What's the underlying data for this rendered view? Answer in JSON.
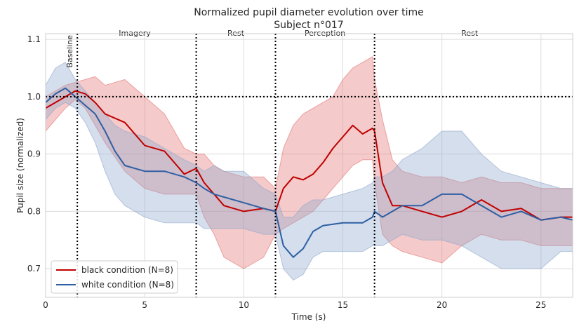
{
  "chart_data": {
    "type": "line",
    "title": "Normalized pupil diameter evolution over time",
    "subtitle": "Subject n°017",
    "xlabel": "Time (s)",
    "ylabel": "Pupil size (normalized)",
    "xlim": [
      0,
      26.6
    ],
    "ylim": [
      0.65,
      1.11
    ],
    "xticks": [
      0,
      5,
      10,
      15,
      20,
      25
    ],
    "xtick_labels": [
      "0",
      "5",
      "10",
      "15",
      "20",
      "25"
    ],
    "yticks": [
      0.7,
      0.8,
      0.9,
      1.0,
      1.1
    ],
    "ytick_labels": [
      "0.7",
      "0.8",
      "0.9",
      "1.0",
      "1.1"
    ],
    "grid": true,
    "legend_position": "bottom-left",
    "baseline_y": 1.0,
    "phase_boundaries": [
      1.6,
      7.6,
      11.6,
      16.6
    ],
    "phases": [
      {
        "label": "Baseline",
        "x": 1.2,
        "vertical": true
      },
      {
        "label": "Imagery",
        "x": 4.5,
        "vertical": false
      },
      {
        "label": "Rest",
        "x": 9.6,
        "vertical": false
      },
      {
        "label": "Perception",
        "x": 14.1,
        "vertical": false
      },
      {
        "label": "Rest",
        "x": 21.4,
        "vertical": false
      }
    ],
    "series": [
      {
        "name": "black condition (N=8)",
        "color": "#c00000",
        "fill": "#e57373",
        "x": [
          0,
          0.5,
          1.0,
          1.5,
          2.0,
          2.5,
          3.0,
          4.0,
          5.0,
          6.0,
          7.0,
          7.6,
          8.0,
          8.5,
          9.0,
          10.0,
          11.0,
          11.6,
          12.0,
          12.5,
          13.0,
          13.5,
          14.0,
          14.5,
          15.0,
          15.5,
          16.0,
          16.5,
          16.6,
          17.0,
          17.5,
          18.0,
          19.0,
          20.0,
          21.0,
          22.0,
          23.0,
          24.0,
          25.0,
          26.0,
          26.6
        ],
        "values": [
          0.98,
          0.99,
          1.0,
          1.01,
          1.005,
          0.99,
          0.97,
          0.955,
          0.915,
          0.905,
          0.865,
          0.875,
          0.85,
          0.83,
          0.81,
          0.8,
          0.805,
          0.8,
          0.84,
          0.86,
          0.855,
          0.865,
          0.885,
          0.91,
          0.93,
          0.95,
          0.935,
          0.945,
          0.94,
          0.85,
          0.81,
          0.81,
          0.8,
          0.79,
          0.8,
          0.82,
          0.8,
          0.805,
          0.785,
          0.79,
          0.79
        ],
        "lower": [
          0.94,
          0.96,
          0.98,
          0.995,
          0.98,
          0.95,
          0.92,
          0.87,
          0.84,
          0.83,
          0.83,
          0.83,
          0.79,
          0.76,
          0.72,
          0.7,
          0.72,
          0.76,
          0.77,
          0.78,
          0.79,
          0.8,
          0.82,
          0.84,
          0.86,
          0.88,
          0.89,
          0.89,
          0.85,
          0.76,
          0.74,
          0.73,
          0.72,
          0.71,
          0.74,
          0.76,
          0.75,
          0.75,
          0.74,
          0.74,
          0.74
        ],
        "upper": [
          1.0,
          1.01,
          1.02,
          1.025,
          1.03,
          1.035,
          1.02,
          1.03,
          1.0,
          0.97,
          0.91,
          0.9,
          0.9,
          0.88,
          0.87,
          0.86,
          0.86,
          0.84,
          0.91,
          0.95,
          0.97,
          0.98,
          0.99,
          1.0,
          1.03,
          1.05,
          1.06,
          1.07,
          1.03,
          0.96,
          0.89,
          0.87,
          0.86,
          0.86,
          0.85,
          0.86,
          0.85,
          0.85,
          0.84,
          0.84,
          0.84
        ]
      },
      {
        "name": "white condition (N=8)",
        "color": "#2e5fa3",
        "fill": "#8fa9cc",
        "x": [
          0,
          0.5,
          1.0,
          1.5,
          2.0,
          2.5,
          3.0,
          3.5,
          4.0,
          5.0,
          6.0,
          7.0,
          7.6,
          8.0,
          8.5,
          9.0,
          10.0,
          11.0,
          11.6,
          12.0,
          12.5,
          13.0,
          13.5,
          14.0,
          15.0,
          16.0,
          16.5,
          16.6,
          17.0,
          17.5,
          18.0,
          19.0,
          20.0,
          21.0,
          22.0,
          23.0,
          24.0,
          25.0,
          26.0,
          26.6
        ],
        "values": [
          0.99,
          1.005,
          1.015,
          1.0,
          0.985,
          0.97,
          0.94,
          0.905,
          0.88,
          0.87,
          0.87,
          0.86,
          0.85,
          0.84,
          0.83,
          0.825,
          0.815,
          0.805,
          0.8,
          0.74,
          0.72,
          0.735,
          0.765,
          0.775,
          0.78,
          0.78,
          0.79,
          0.8,
          0.79,
          0.8,
          0.81,
          0.81,
          0.83,
          0.83,
          0.81,
          0.79,
          0.8,
          0.785,
          0.79,
          0.785
        ],
        "lower": [
          0.96,
          0.98,
          0.99,
          0.98,
          0.955,
          0.92,
          0.87,
          0.83,
          0.81,
          0.79,
          0.78,
          0.78,
          0.78,
          0.77,
          0.77,
          0.77,
          0.77,
          0.76,
          0.76,
          0.7,
          0.68,
          0.69,
          0.72,
          0.73,
          0.73,
          0.73,
          0.74,
          0.74,
          0.74,
          0.75,
          0.76,
          0.75,
          0.75,
          0.74,
          0.72,
          0.7,
          0.7,
          0.7,
          0.73,
          0.73
        ],
        "upper": [
          1.02,
          1.05,
          1.06,
          1.03,
          1.01,
          0.99,
          0.97,
          0.95,
          0.94,
          0.93,
          0.91,
          0.89,
          0.88,
          0.87,
          0.88,
          0.87,
          0.87,
          0.84,
          0.83,
          0.79,
          0.79,
          0.81,
          0.82,
          0.82,
          0.83,
          0.84,
          0.85,
          0.86,
          0.86,
          0.87,
          0.89,
          0.91,
          0.94,
          0.94,
          0.9,
          0.87,
          0.86,
          0.85,
          0.84,
          0.84
        ]
      }
    ]
  }
}
